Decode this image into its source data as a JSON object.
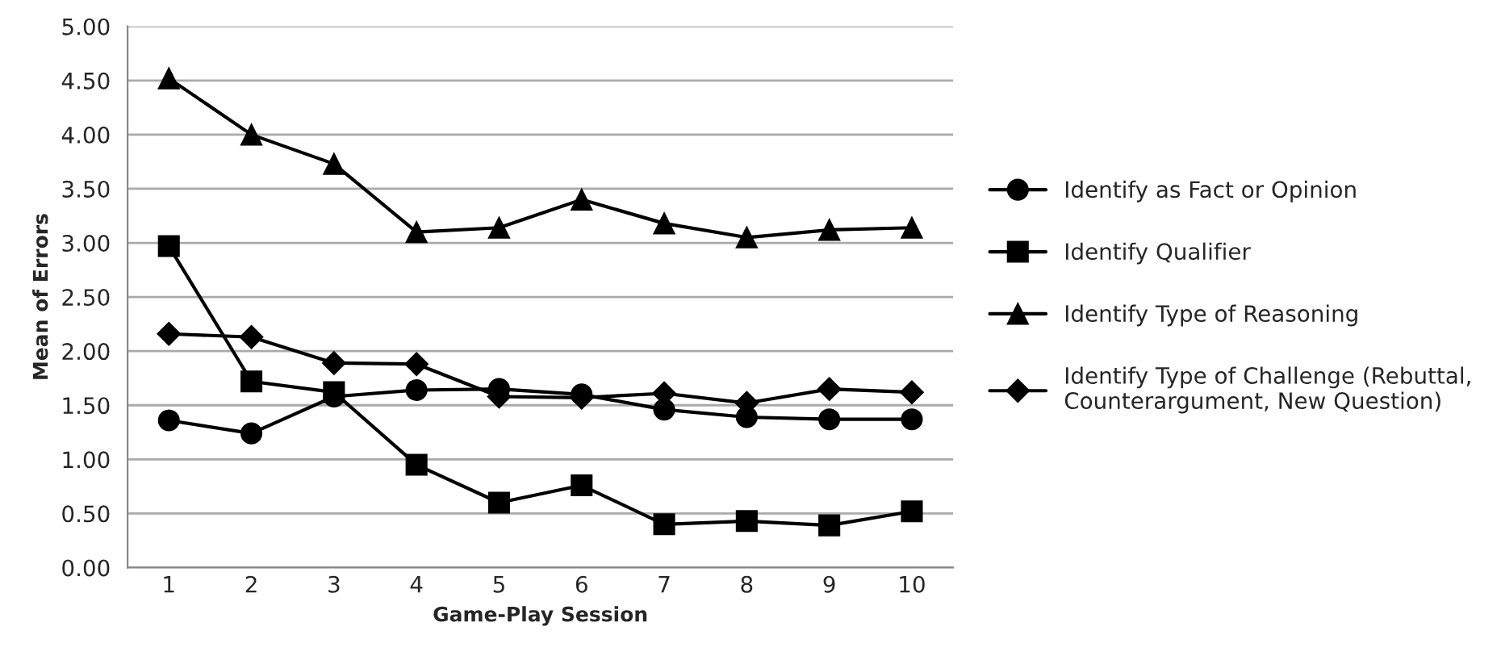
{
  "chart_data": {
    "type": "line",
    "xlabel": "Game-Play Session",
    "ylabel": "Mean of Errors",
    "categories": [
      "1",
      "2",
      "3",
      "4",
      "5",
      "6",
      "7",
      "8",
      "9",
      "10"
    ],
    "series": [
      {
        "name": "Identify as Fact or Opinion",
        "color": "#000000",
        "marker": "circle",
        "values": [
          1.36,
          1.24,
          1.58,
          1.64,
          1.65,
          1.6,
          1.46,
          1.39,
          1.37,
          1.37
        ]
      },
      {
        "name": "Identify Qualifier",
        "color": "#000000",
        "marker": "square",
        "values": [
          2.97,
          1.72,
          1.62,
          0.95,
          0.6,
          0.76,
          0.4,
          0.43,
          0.39,
          0.52
        ]
      },
      {
        "name": "Identify Type of Reasoning",
        "color": "#000000",
        "marker": "triangle",
        "values": [
          4.52,
          4.0,
          3.73,
          3.1,
          3.14,
          3.4,
          3.18,
          3.05,
          3.12,
          3.14
        ]
      },
      {
        "name": "Identify Type of Challenge (Rebuttal,\nCounterargument, New Question)",
        "color": "#000000",
        "marker": "diamond",
        "values": [
          2.16,
          2.13,
          1.89,
          1.88,
          1.58,
          1.57,
          1.61,
          1.52,
          1.65,
          1.62
        ]
      }
    ],
    "ylim": [
      0,
      5
    ],
    "yticks": [
      {
        "value": 0,
        "label": "0.00"
      },
      {
        "value": 0.5,
        "label": "0.50"
      },
      {
        "value": 1,
        "label": "1.00"
      },
      {
        "value": 1.5,
        "label": "1.50"
      },
      {
        "value": 2,
        "label": "2.00"
      },
      {
        "value": 2.5,
        "label": "2.50"
      },
      {
        "value": 3,
        "label": "3.00"
      },
      {
        "value": 3.5,
        "label": "3.50"
      },
      {
        "value": 4,
        "label": "4.00"
      },
      {
        "value": 4.5,
        "label": "4.50"
      },
      {
        "value": 5,
        "label": "5.00"
      }
    ],
    "grid": "y",
    "legend": "right",
    "line_style": "solid"
  }
}
